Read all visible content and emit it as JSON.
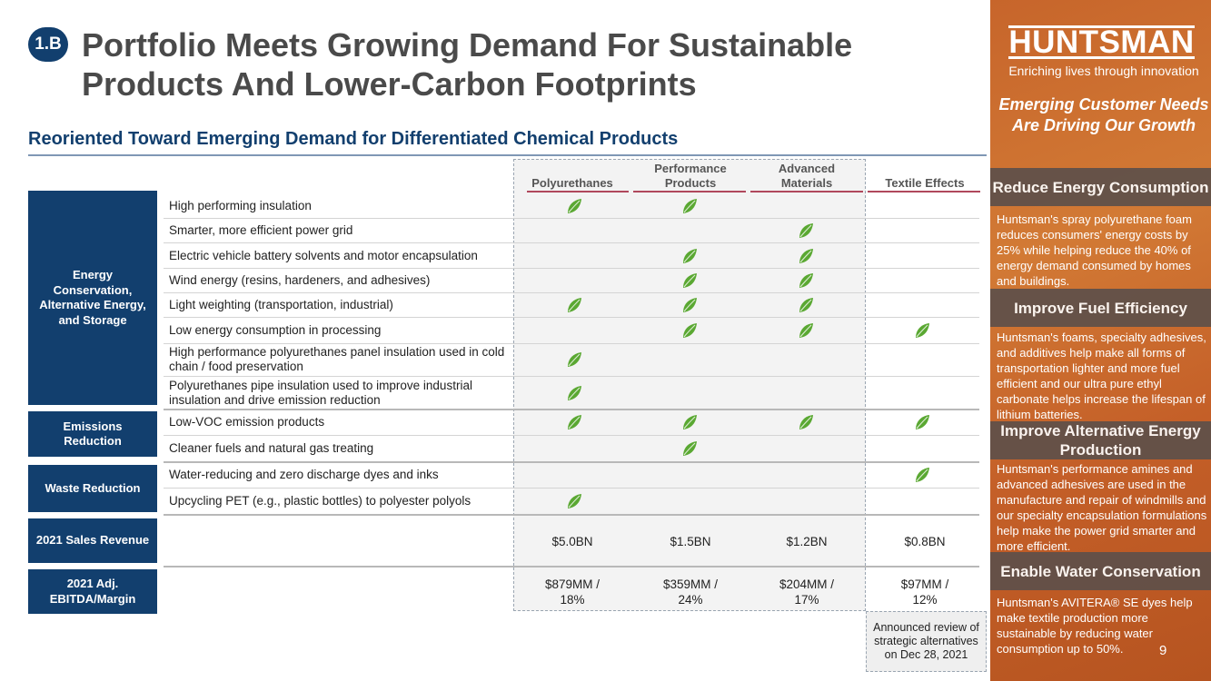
{
  "header": {
    "badge": "1.B",
    "title_line1": "Portfolio Meets Growing Demand For Sustainable",
    "title_line2": "Products And Lower-Carbon Footprints",
    "subtitle": "Reoriented Toward Emerging Demand for Differentiated Chemical Products"
  },
  "table": {
    "columns": [
      "Polyurethanes",
      "Performance Products",
      "Advanced Materials",
      "Textile Effects"
    ],
    "categories": {
      "energy": "Energy Conservation, Alternative Energy, and Storage",
      "emissions": "Emissions Reduction",
      "waste": "Waste Reduction",
      "sales": "2021 Sales Revenue",
      "ebitda": "2021 Adj. EBITDA/Margin"
    },
    "rows": [
      {
        "label": "High performing insulation",
        "marks": [
          true,
          true,
          false,
          false
        ]
      },
      {
        "label": "Smarter, more efficient power grid",
        "marks": [
          false,
          false,
          true,
          false
        ]
      },
      {
        "label": "Electric vehicle battery solvents and motor encapsulation",
        "marks": [
          false,
          true,
          true,
          false
        ]
      },
      {
        "label": "Wind energy (resins, hardeners, and adhesives)",
        "marks": [
          false,
          true,
          true,
          false
        ]
      },
      {
        "label": "Light weighting (transportation, industrial)",
        "marks": [
          true,
          true,
          true,
          false
        ]
      },
      {
        "label": "Low energy consumption in processing",
        "marks": [
          false,
          true,
          true,
          true
        ]
      },
      {
        "label": "High performance polyurethanes panel insulation used in cold chain / food preservation",
        "marks": [
          true,
          false,
          false,
          false
        ]
      },
      {
        "label": "Polyurethanes pipe insulation used to improve industrial insulation and drive emission reduction",
        "marks": [
          true,
          false,
          false,
          false
        ]
      },
      {
        "label": "Low-VOC emission products",
        "marks": [
          true,
          true,
          true,
          true
        ]
      },
      {
        "label": "Cleaner fuels and natural gas treating",
        "marks": [
          false,
          true,
          false,
          false
        ]
      },
      {
        "label": "Water-reducing and zero discharge dyes and inks",
        "marks": [
          false,
          false,
          false,
          true
        ]
      },
      {
        "label": "Upcycling PET (e.g., plastic bottles) to polyester polyols",
        "marks": [
          true,
          false,
          false,
          false
        ]
      }
    ],
    "sales": [
      "$5.0BN",
      "$1.5BN",
      "$1.2BN",
      "$0.8BN"
    ],
    "ebitda": [
      "$879MM / 18%",
      "$359MM / 24%",
      "$204MM / 17%",
      "$97MM / 12%"
    ],
    "announcement": "Announced review of strategic alternatives on Dec 28, 2021",
    "leaf_icon": "leaf-icon",
    "leaf_color": "#5aa832"
  },
  "sidebar": {
    "logo": "HUNTSMAN",
    "tagline": "Enriching lives through innovation",
    "heading": "Emerging Customer Needs Are Driving Our Growth",
    "sections": [
      {
        "title": "Reduce Energy Consumption",
        "text": "Huntsman's spray polyurethane foam reduces consumers' energy costs by 25% while helping reduce the 40% of energy demand consumed by homes and buildings."
      },
      {
        "title": "Improve Fuel Efficiency",
        "text": "Huntsman's foams, specialty adhesives, and additives help make all forms of transportation lighter and more fuel efficient and our ultra pure ethyl carbonate helps increase the lifespan of lithium batteries."
      },
      {
        "title": "Improve Alternative Energy Production",
        "text": "Huntsman's performance amines and advanced adhesives are used in the manufacture and repair of windmills and our specialty encapsulation formulations help make the power grid smarter and more efficient."
      },
      {
        "title": "Enable Water Conservation",
        "text": "Huntsman's AVITERA® SE dyes help make textile production more sustainable by reducing water consumption up to 50%."
      }
    ],
    "page_number": "9",
    "accent_color": "#c7652b"
  }
}
